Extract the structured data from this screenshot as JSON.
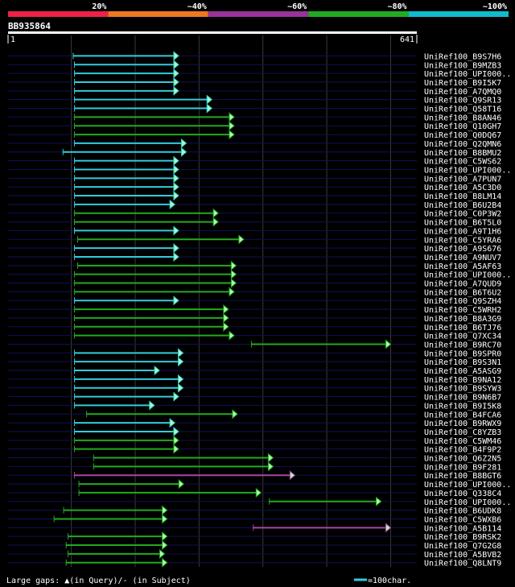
{
  "chart_data": {
    "type": "alignment",
    "query_id": "BB935864",
    "query_start": "1",
    "query_end": "641",
    "query_length": 641,
    "identity_legend": [
      {
        "label": "20%",
        "color": "#ee2244"
      },
      {
        "label": "~40%",
        "color": "#ee7722"
      },
      {
        "label": "~60%",
        "color": "#993399"
      },
      {
        "label": "~80%",
        "color": "#22aa22"
      },
      {
        "label": "~100%",
        "color": "#11bbcc"
      }
    ],
    "footer": {
      "gaps_label": "Large gaps: ",
      "gaps_detail": "(in Query)/- (in Subject)",
      "scale_label": "=100char."
    },
    "colors": {
      "cyan": "#33ccdd",
      "green": "#22aa22",
      "purple": "#aa44aa"
    },
    "hits": [
      {
        "name": "UniRef100_B9S7H6",
        "start": 103,
        "end": 268,
        "color": "cyan"
      },
      {
        "name": "UniRef100_B9MZB3",
        "start": 105,
        "end": 268,
        "color": "cyan"
      },
      {
        "name": "UniRef100_UPI000..",
        "start": 105,
        "end": 268,
        "color": "cyan"
      },
      {
        "name": "UniRef100_B9I5K7",
        "start": 105,
        "end": 268,
        "color": "cyan"
      },
      {
        "name": "UniRef100_A7QMQ0",
        "start": 105,
        "end": 268,
        "color": "cyan"
      },
      {
        "name": "UniRef100_Q9SR13",
        "start": 105,
        "end": 320,
        "color": "cyan"
      },
      {
        "name": "UniRef100_Q58T16",
        "start": 105,
        "end": 320,
        "color": "cyan"
      },
      {
        "name": "UniRef100_B8AN46",
        "start": 105,
        "end": 355,
        "color": "green"
      },
      {
        "name": "UniRef100_Q10GH7",
        "start": 105,
        "end": 355,
        "color": "green"
      },
      {
        "name": "UniRef100_Q0DQ67",
        "start": 105,
        "end": 355,
        "color": "green"
      },
      {
        "name": "UniRef100_Q2QMN6",
        "start": 105,
        "end": 280,
        "color": "cyan"
      },
      {
        "name": "UniRef100_B8BMU2",
        "start": 87,
        "end": 280,
        "color": "cyan"
      },
      {
        "name": "UniRef100_C5WS62",
        "start": 105,
        "end": 268,
        "color": "cyan"
      },
      {
        "name": "UniRef100_UPI000..",
        "start": 105,
        "end": 268,
        "color": "cyan"
      },
      {
        "name": "UniRef100_A7PUN7",
        "start": 105,
        "end": 268,
        "color": "cyan"
      },
      {
        "name": "UniRef100_A5C3D0",
        "start": 105,
        "end": 268,
        "color": "cyan"
      },
      {
        "name": "UniRef100_B8LM14",
        "start": 105,
        "end": 268,
        "color": "cyan"
      },
      {
        "name": "UniRef100_B6U2B4",
        "start": 105,
        "end": 262,
        "color": "cyan"
      },
      {
        "name": "UniRef100_C0P3W2",
        "start": 105,
        "end": 330,
        "color": "green"
      },
      {
        "name": "UniRef100_B6T5L0",
        "start": 105,
        "end": 330,
        "color": "green"
      },
      {
        "name": "UniRef100_A9T1H6",
        "start": 105,
        "end": 268,
        "color": "cyan"
      },
      {
        "name": "UniRef100_C5YRA6",
        "start": 110,
        "end": 370,
        "color": "green"
      },
      {
        "name": "UniRef100_A9S676",
        "start": 105,
        "end": 268,
        "color": "cyan"
      },
      {
        "name": "UniRef100_A9NUV7",
        "start": 105,
        "end": 268,
        "color": "cyan"
      },
      {
        "name": "UniRef100_A5AF63",
        "start": 110,
        "end": 358,
        "color": "green"
      },
      {
        "name": "UniRef100_UPI000..",
        "start": 105,
        "end": 358,
        "color": "green"
      },
      {
        "name": "UniRef100_A7QUD9",
        "start": 105,
        "end": 358,
        "color": "green"
      },
      {
        "name": "UniRef100_B6T6U2",
        "start": 105,
        "end": 355,
        "color": "green"
      },
      {
        "name": "UniRef100_Q9SZH4",
        "start": 105,
        "end": 268,
        "color": "cyan"
      },
      {
        "name": "UniRef100_C5WRH2",
        "start": 105,
        "end": 346,
        "color": "green"
      },
      {
        "name": "UniRef100_B8A3G9",
        "start": 105,
        "end": 346,
        "color": "green"
      },
      {
        "name": "UniRef100_B6TJ76",
        "start": 105,
        "end": 346,
        "color": "green"
      },
      {
        "name": "UniRef100_Q7XC34",
        "start": 105,
        "end": 355,
        "color": "green"
      },
      {
        "name": "UniRef100_B9RC70",
        "start": 382,
        "end": 600,
        "color": "green"
      },
      {
        "name": "UniRef100_B9SPR0",
        "start": 105,
        "end": 275,
        "color": "cyan"
      },
      {
        "name": "UniRef100_B9S3N1",
        "start": 105,
        "end": 275,
        "color": "cyan"
      },
      {
        "name": "UniRef100_A5ASG9",
        "start": 105,
        "end": 238,
        "color": "cyan"
      },
      {
        "name": "UniRef100_B9NA12",
        "start": 105,
        "end": 275,
        "color": "cyan"
      },
      {
        "name": "UniRef100_B9SYW3",
        "start": 105,
        "end": 275,
        "color": "cyan"
      },
      {
        "name": "UniRef100_B9N6B7",
        "start": 105,
        "end": 268,
        "color": "cyan"
      },
      {
        "name": "UniRef100_B9I5K8",
        "start": 105,
        "end": 230,
        "color": "cyan"
      },
      {
        "name": "UniRef100_B4FCA6",
        "start": 124,
        "end": 360,
        "color": "green"
      },
      {
        "name": "UniRef100_B9RWX9",
        "start": 105,
        "end": 262,
        "color": "cyan"
      },
      {
        "name": "UniRef100_C8YZB3",
        "start": 105,
        "end": 268,
        "color": "cyan"
      },
      {
        "name": "UniRef100_C5WM46",
        "start": 105,
        "end": 268,
        "color": "green"
      },
      {
        "name": "UniRef100_B4F9P2",
        "start": 105,
        "end": 268,
        "color": "green"
      },
      {
        "name": "UniRef100_Q6Z2N5",
        "start": 135,
        "end": 416,
        "color": "green"
      },
      {
        "name": "UniRef100_B9F281",
        "start": 135,
        "end": 416,
        "color": "green"
      },
      {
        "name": "UniRef100_B8BGT6",
        "start": 105,
        "end": 450,
        "color": "purple"
      },
      {
        "name": "UniRef100_UPI000..",
        "start": 112,
        "end": 276,
        "color": "green"
      },
      {
        "name": "UniRef100_Q338C4",
        "start": 112,
        "end": 397,
        "color": "green"
      },
      {
        "name": "UniRef100_UPI000..",
        "start": 410,
        "end": 585,
        "color": "green"
      },
      {
        "name": "UniRef100_B6UDK8",
        "start": 88,
        "end": 250,
        "color": "green"
      },
      {
        "name": "UniRef100_C5WXB6",
        "start": 73,
        "end": 250,
        "color": "green"
      },
      {
        "name": "UniRef100_A5B114",
        "start": 385,
        "end": 600,
        "color": "purple"
      },
      {
        "name": "UniRef100_B9RSK2",
        "start": 95,
        "end": 250,
        "color": "green"
      },
      {
        "name": "UniRef100_Q7G2G8",
        "start": 92,
        "end": 250,
        "color": "green"
      },
      {
        "name": "UniRef100_A5BVB2",
        "start": 95,
        "end": 246,
        "color": "green"
      },
      {
        "name": "UniRef100_Q8LNT9",
        "start": 92,
        "end": 250,
        "color": "green"
      }
    ]
  }
}
